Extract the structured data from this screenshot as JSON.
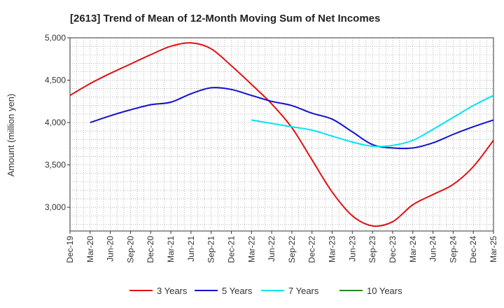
{
  "chart_data": {
    "type": "line",
    "title": "[2613]  Trend of Mean of 12-Month Moving Sum of Net Incomes",
    "ylabel": "Amount (million yen)",
    "ylim": [
      2720,
      5000
    ],
    "yticks": [
      3000,
      3500,
      4000,
      4500,
      5000
    ],
    "ytick_labels": [
      "3,000",
      "3,500",
      "4,000",
      "4,500",
      "5,000"
    ],
    "x_tick_labels": [
      "Dec-19",
      "Mar-20",
      "Jun-20",
      "Sep-20",
      "Dec-20",
      "Mar-21",
      "Jun-21",
      "Sep-21",
      "Dec-21",
      "Mar-22",
      "Jun-22",
      "Sep-22",
      "Dec-22",
      "Mar-23",
      "Jun-23",
      "Sep-23",
      "Dec-23",
      "Mar-24",
      "Jun-24",
      "Sep-24",
      "Dec-24",
      "Mar-25"
    ],
    "grid": true,
    "legend_position": "bottom",
    "series": [
      {
        "name": "3 Years",
        "color": "#dd1111",
        "points": [
          [
            "Dec-19",
            4320
          ],
          [
            "Mar-20",
            4460
          ],
          [
            "Jun-20",
            4580
          ],
          [
            "Sep-20",
            4690
          ],
          [
            "Dec-20",
            4800
          ],
          [
            "Mar-21",
            4900
          ],
          [
            "Jun-21",
            4940
          ],
          [
            "Sep-21",
            4870
          ],
          [
            "Dec-21",
            4670
          ],
          [
            "Mar-22",
            4450
          ],
          [
            "Jun-22",
            4220
          ],
          [
            "Sep-22",
            3940
          ],
          [
            "Dec-22",
            3560
          ],
          [
            "Mar-23",
            3180
          ],
          [
            "Jun-23",
            2900
          ],
          [
            "Sep-23",
            2780
          ],
          [
            "Dec-23",
            2830
          ],
          [
            "Mar-24",
            3030
          ],
          [
            "Jun-24",
            3150
          ],
          [
            "Sep-24",
            3270
          ],
          [
            "Dec-24",
            3480
          ],
          [
            "Mar-25",
            3790
          ]
        ]
      },
      {
        "name": "5 Years",
        "color": "#1111cc",
        "points": [
          [
            "Mar-20",
            4000
          ],
          [
            "Jun-20",
            4080
          ],
          [
            "Sep-20",
            4150
          ],
          [
            "Dec-20",
            4210
          ],
          [
            "Mar-21",
            4240
          ],
          [
            "Jun-21",
            4340
          ],
          [
            "Sep-21",
            4410
          ],
          [
            "Dec-21",
            4390
          ],
          [
            "Mar-22",
            4320
          ],
          [
            "Jun-22",
            4250
          ],
          [
            "Sep-22",
            4200
          ],
          [
            "Dec-22",
            4110
          ],
          [
            "Mar-23",
            4040
          ],
          [
            "Jun-23",
            3890
          ],
          [
            "Sep-23",
            3740
          ],
          [
            "Dec-23",
            3700
          ],
          [
            "Mar-24",
            3700
          ],
          [
            "Jun-24",
            3760
          ],
          [
            "Sep-24",
            3860
          ],
          [
            "Dec-24",
            3950
          ],
          [
            "Mar-25",
            4030
          ]
        ]
      },
      {
        "name": "7 Years",
        "color": "#00e5ee",
        "points": [
          [
            "Mar-22",
            4030
          ],
          [
            "Jun-22",
            3990
          ],
          [
            "Sep-22",
            3950
          ],
          [
            "Dec-22",
            3910
          ],
          [
            "Mar-23",
            3840
          ],
          [
            "Jun-23",
            3770
          ],
          [
            "Sep-23",
            3720
          ],
          [
            "Dec-23",
            3730
          ],
          [
            "Mar-24",
            3790
          ],
          [
            "Jun-24",
            3920
          ],
          [
            "Sep-24",
            4060
          ],
          [
            "Dec-24",
            4200
          ],
          [
            "Mar-25",
            4320
          ]
        ]
      },
      {
        "name": "10 Years",
        "color": "#228822",
        "points": []
      }
    ]
  }
}
